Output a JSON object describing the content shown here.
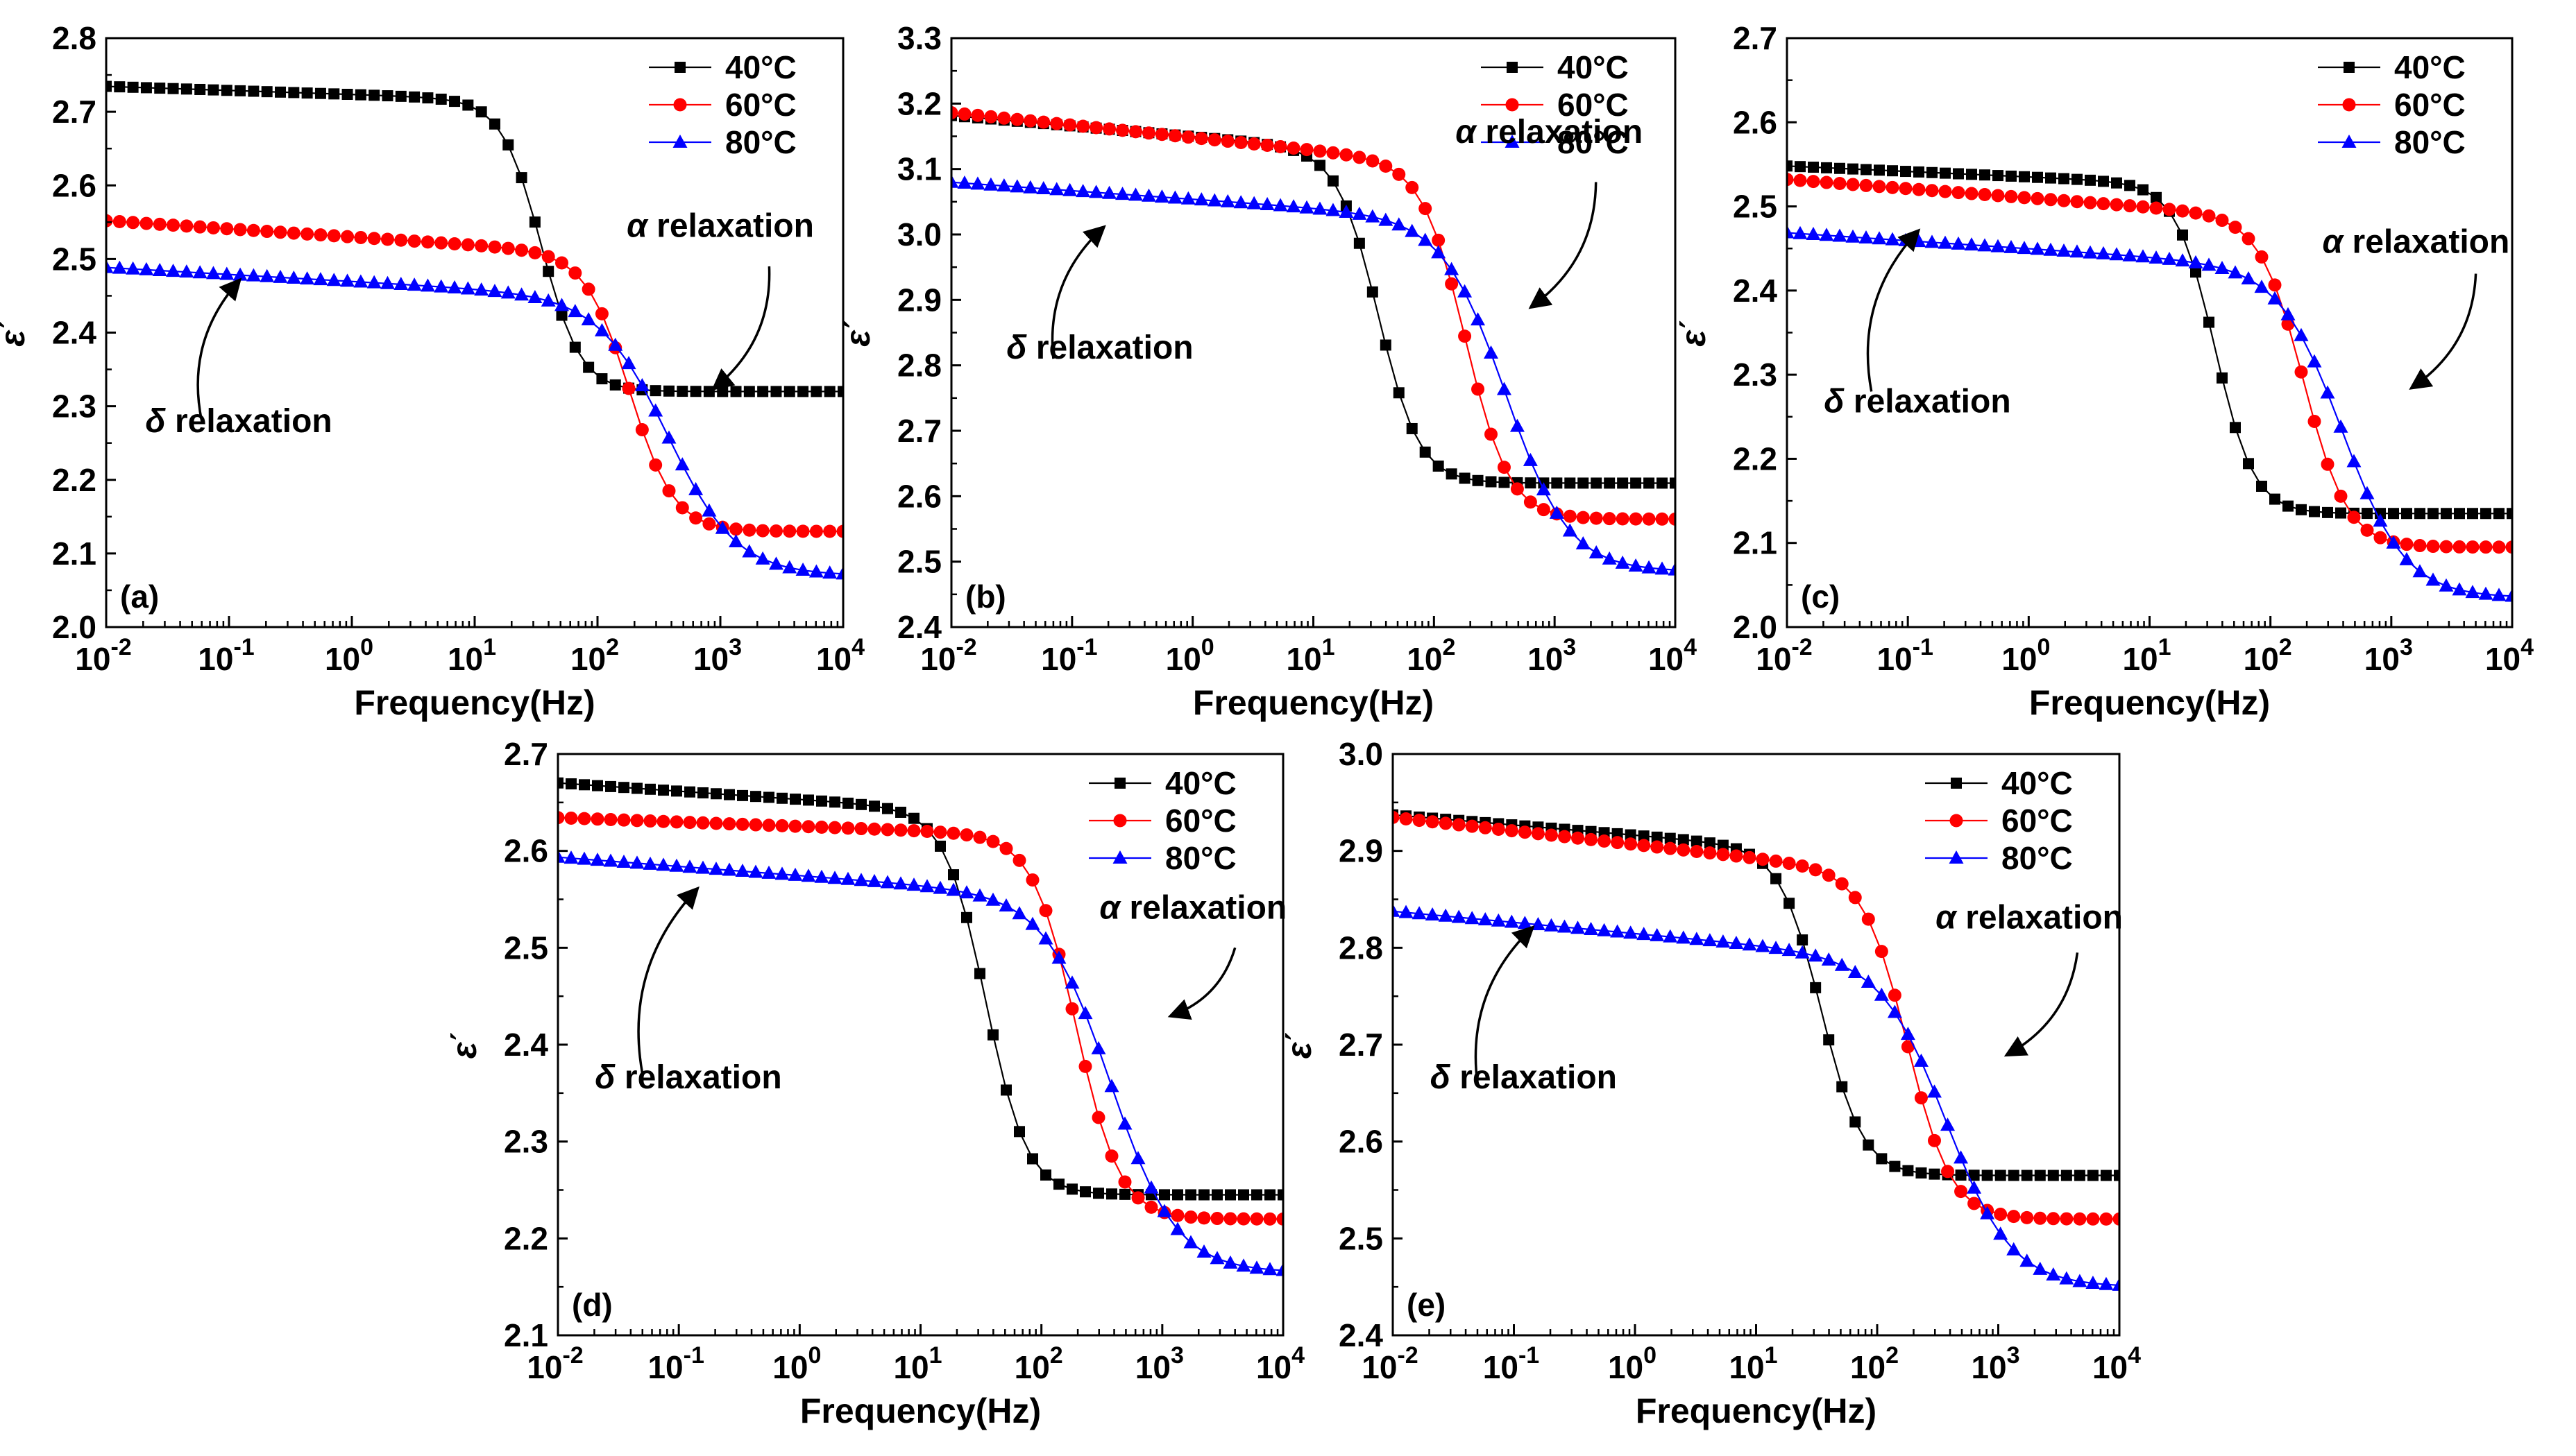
{
  "figure": {
    "legend_labels": [
      "40°C",
      "60°C",
      "80°C"
    ],
    "colors": {
      "40°C": "#000000",
      "60°C": "#ff0000",
      "80°C": "#0000ff"
    },
    "markers": {
      "40°C": "square",
      "60°C": "circle",
      "80°C": "triangle"
    }
  },
  "chart_data": [
    {
      "type": "line",
      "panel_label": "(a)",
      "xlabel": "Frequency(Hz)",
      "ylabel": "ε΄",
      "xscale": "log",
      "xlim": [
        0.01,
        10000
      ],
      "ylim": [
        2.0,
        2.8
      ],
      "yticks": [
        "2.0",
        "2.1",
        "2.2",
        "2.3",
        "2.4",
        "2.5",
        "2.6",
        "2.7",
        "2.8"
      ],
      "xticks": [
        {
          "base": "10",
          "exp": "-2"
        },
        {
          "base": "10",
          "exp": "-1"
        },
        {
          "base": "10",
          "exp": "0"
        },
        {
          "base": "10",
          "exp": "1"
        },
        {
          "base": "10",
          "exp": "2"
        },
        {
          "base": "10",
          "exp": "3"
        },
        {
          "base": "10",
          "exp": "4"
        }
      ],
      "legend_position": "top-right",
      "series": [
        {
          "name": "40°C",
          "params": {
            "eh": 2.32,
            "de": 0.395,
            "fc": 35,
            "w": 0.16,
            "s": 0.0055
          }
        },
        {
          "name": "60°C",
          "params": {
            "eh": 2.13,
            "de": 0.375,
            "fc": 185,
            "w": 0.18,
            "s": 0.011
          }
        },
        {
          "name": "80°C",
          "params": {
            "eh": 2.07,
            "de": 0.375,
            "fc": 380,
            "w": 0.28,
            "s": 0.0095
          }
        }
      ],
      "annotations": [
        {
          "text_prefix": "α",
          "text": " relaxation",
          "text_pos": [
            1000,
            2.53
          ],
          "arrow_from": [
            2500,
            2.49
          ],
          "arrow_to": [
            900,
            2.325
          ]
        },
        {
          "text_prefix": "δ",
          "text": " relaxation",
          "text_pos": [
            0.12,
            2.265
          ],
          "arrow_from": [
            0.06,
            2.28
          ],
          "arrow_to": [
            0.12,
            2.47
          ]
        }
      ]
    },
    {
      "type": "line",
      "panel_label": "(b)",
      "xlabel": "Frequency(Hz)",
      "ylabel": "ε΄",
      "xscale": "log",
      "xlim": [
        0.01,
        10000
      ],
      "ylim": [
        2.4,
        3.3
      ],
      "yticks": [
        "2.4",
        "2.5",
        "2.6",
        "2.7",
        "2.8",
        "2.9",
        "3.0",
        "3.1",
        "3.2",
        "3.3"
      ],
      "xticks": [
        {
          "base": "10",
          "exp": "-2"
        },
        {
          "base": "10",
          "exp": "-1"
        },
        {
          "base": "10",
          "exp": "0"
        },
        {
          "base": "10",
          "exp": "1"
        },
        {
          "base": "10",
          "exp": "2"
        },
        {
          "base": "10",
          "exp": "3"
        },
        {
          "base": "10",
          "exp": "4"
        }
      ],
      "legend_position": "top-right",
      "series": [
        {
          "name": "40°C",
          "params": {
            "eh": 2.62,
            "de": 0.505,
            "fc": 35,
            "w": 0.17,
            "s": 0.016
          }
        },
        {
          "name": "60°C",
          "params": {
            "eh": 2.565,
            "de": 0.54,
            "fc": 185,
            "w": 0.18,
            "s": 0.019
          }
        },
        {
          "name": "80°C",
          "params": {
            "eh": 2.485,
            "de": 0.535,
            "fc": 400,
            "w": 0.26,
            "s": 0.013
          }
        }
      ],
      "annotations": [
        {
          "text_prefix": "α",
          "text": " relaxation",
          "text_pos": [
            900,
            3.14
          ],
          "arrow_from": [
            2200,
            3.08
          ],
          "arrow_to": [
            650,
            2.89
          ]
        },
        {
          "text_prefix": "δ",
          "text": " relaxation",
          "text_pos": [
            0.17,
            2.81
          ],
          "arrow_from": [
            0.07,
            2.81
          ],
          "arrow_to": [
            0.18,
            3.01
          ]
        }
      ]
    },
    {
      "type": "line",
      "panel_label": "(c)",
      "xlabel": "Frequency(Hz)",
      "ylabel": "ε΄",
      "xscale": "log",
      "xlim": [
        0.01,
        10000
      ],
      "ylim": [
        2.0,
        2.7
      ],
      "yticks": [
        "2.0",
        "2.1",
        "2.2",
        "2.3",
        "2.4",
        "2.5",
        "2.6",
        "2.7"
      ],
      "xticks": [
        {
          "base": "10",
          "exp": "-2"
        },
        {
          "base": "10",
          "exp": "-1"
        },
        {
          "base": "10",
          "exp": "0"
        },
        {
          "base": "10",
          "exp": "1"
        },
        {
          "base": "10",
          "exp": "2"
        },
        {
          "base": "10",
          "exp": "3"
        },
        {
          "base": "10",
          "exp": "4"
        }
      ],
      "legend_position": "top-right",
      "series": [
        {
          "name": "40°C",
          "params": {
            "eh": 2.135,
            "de": 0.39,
            "fc": 35,
            "w": 0.16,
            "s": 0.0065
          }
        },
        {
          "name": "60°C",
          "params": {
            "eh": 2.095,
            "de": 0.39,
            "fc": 190,
            "w": 0.18,
            "s": 0.011
          }
        },
        {
          "name": "80°C",
          "params": {
            "eh": 2.035,
            "de": 0.39,
            "fc": 400,
            "w": 0.26,
            "s": 0.0095
          }
        }
      ],
      "annotations": [
        {
          "text_prefix": "α",
          "text": " relaxation",
          "text_pos": [
            1600,
            2.445
          ],
          "arrow_from": [
            5000,
            2.42
          ],
          "arrow_to": [
            1500,
            2.285
          ]
        },
        {
          "text_prefix": "δ",
          "text": " relaxation",
          "text_pos": [
            0.12,
            2.255
          ],
          "arrow_from": [
            0.05,
            2.28
          ],
          "arrow_to": [
            0.12,
            2.47
          ]
        }
      ]
    },
    {
      "type": "line",
      "panel_label": "(d)",
      "xlabel": "Frequency(Hz)",
      "ylabel": "ε΄",
      "xscale": "log",
      "xlim": [
        0.01,
        10000
      ],
      "ylim": [
        2.1,
        2.7
      ],
      "yticks": [
        "2.1",
        "2.2",
        "2.3",
        "2.4",
        "2.5",
        "2.6",
        "2.7"
      ],
      "xticks": [
        {
          "base": "10",
          "exp": "-2"
        },
        {
          "base": "10",
          "exp": "-1"
        },
        {
          "base": "10",
          "exp": "0"
        },
        {
          "base": "10",
          "exp": "1"
        },
        {
          "base": "10",
          "exp": "2"
        },
        {
          "base": "10",
          "exp": "3"
        },
        {
          "base": "10",
          "exp": "4"
        }
      ],
      "legend_position": "top-right",
      "series": [
        {
          "name": "40°C",
          "params": {
            "eh": 2.245,
            "de": 0.395,
            "fc": 35,
            "w": 0.17,
            "s": 0.0085
          }
        },
        {
          "name": "60°C",
          "params": {
            "eh": 2.22,
            "de": 0.395,
            "fc": 195,
            "w": 0.18,
            "s": 0.0045
          }
        },
        {
          "name": "80°C",
          "params": {
            "eh": 2.165,
            "de": 0.385,
            "fc": 380,
            "w": 0.27,
            "s": 0.0095
          }
        }
      ],
      "annotations": [
        {
          "text_prefix": "α",
          "text": " relaxation",
          "text_pos": [
            1800,
            2.53
          ],
          "arrow_from": [
            4000,
            2.5
          ],
          "arrow_to": [
            1200,
            2.43
          ]
        },
        {
          "text_prefix": "δ",
          "text": " relaxation",
          "text_pos": [
            0.12,
            2.355
          ],
          "arrow_from": [
            0.05,
            2.37
          ],
          "arrow_to": [
            0.14,
            2.56
          ]
        }
      ]
    },
    {
      "type": "line",
      "panel_label": "(e)",
      "xlabel": "Frequency(Hz)",
      "ylabel": "ε΄",
      "xscale": "log",
      "xlim": [
        0.01,
        10000
      ],
      "ylim": [
        2.4,
        3.0
      ],
      "yticks": [
        "2.4",
        "2.5",
        "2.6",
        "2.7",
        "2.8",
        "2.9",
        "3.0"
      ],
      "xticks": [
        {
          "base": "10",
          "exp": "-2"
        },
        {
          "base": "10",
          "exp": "-1"
        },
        {
          "base": "10",
          "exp": "0"
        },
        {
          "base": "10",
          "exp": "1"
        },
        {
          "base": "10",
          "exp": "2"
        },
        {
          "base": "10",
          "exp": "3"
        },
        {
          "base": "10",
          "exp": "4"
        }
      ],
      "legend_position": "top-right",
      "series": [
        {
          "name": "40°C",
          "params": {
            "eh": 2.565,
            "de": 0.335,
            "fc": 35,
            "w": 0.17,
            "s": 0.0105
          }
        },
        {
          "name": "60°C",
          "params": {
            "eh": 2.52,
            "de": 0.355,
            "fc": 180,
            "w": 0.18,
            "s": 0.014
          }
        },
        {
          "name": "80°C",
          "params": {
            "eh": 2.45,
            "de": 0.335,
            "fc": 380,
            "w": 0.27,
            "s": 0.0115
          }
        }
      ],
      "annotations": [
        {
          "text_prefix": "α",
          "text": " relaxation",
          "text_pos": [
            1800,
            2.82
          ],
          "arrow_from": [
            4500,
            2.795
          ],
          "arrow_to": [
            1200,
            2.69
          ]
        },
        {
          "text_prefix": "δ",
          "text": " relaxation",
          "text_pos": [
            0.12,
            2.655
          ],
          "arrow_from": [
            0.05,
            2.66
          ],
          "arrow_to": [
            0.14,
            2.82
          ]
        }
      ]
    }
  ]
}
